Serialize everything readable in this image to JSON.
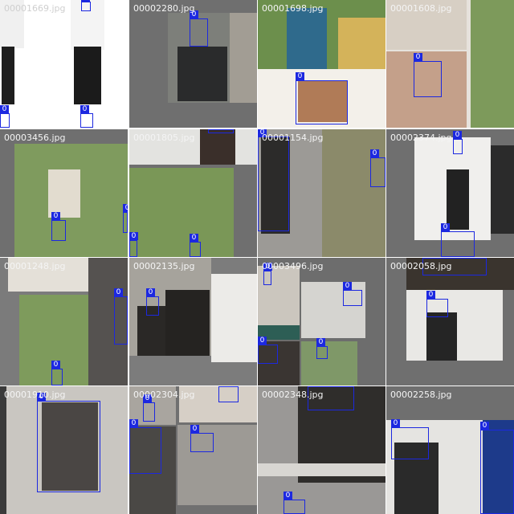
{
  "app": {
    "title": ""
  },
  "colors": {
    "box": "#1c28e0",
    "tile_bg": "#6f6f6f",
    "label_text": "#f4f4f4"
  },
  "tiles": [
    {
      "label": "00001669.jpg",
      "class_id": "0"
    },
    {
      "label": "00002280.jpg",
      "class_id": "0"
    },
    {
      "label": "00001698.jpg",
      "class_id": "0"
    },
    {
      "label": "00001608.jpg",
      "class_id": "0"
    },
    {
      "label": "00003456.jpg",
      "class_id": "0"
    },
    {
      "label": "00001805.jpg",
      "class_id": "0"
    },
    {
      "label": "00001154.jpg",
      "class_id": "0"
    },
    {
      "label": "00002374.jpg",
      "class_id": "0"
    },
    {
      "label": "00001248.jpg",
      "class_id": "0"
    },
    {
      "label": "00002135.jpg",
      "class_id": "0"
    },
    {
      "label": "00003496.jpg",
      "class_id": "0"
    },
    {
      "label": "00002058.jpg",
      "class_id": "0"
    },
    {
      "label": "00001910.jpg",
      "class_id": "0"
    },
    {
      "label": "00002304.jpg",
      "class_id": "0"
    },
    {
      "label": "00002348.jpg",
      "class_id": "0"
    },
    {
      "label": "00002258.jpg",
      "class_id": "0"
    }
  ]
}
